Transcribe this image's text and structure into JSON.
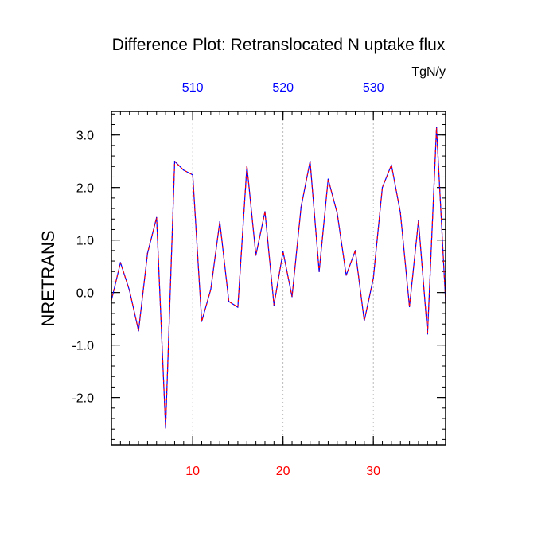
{
  "chart_data": {
    "type": "line",
    "title": "Difference Plot: Retranslocated N uptake flux",
    "units": "TgN/y",
    "ylabel": "NRETRANS",
    "xlim": [
      1,
      38
    ],
    "ylim": [
      -2.9,
      3.45
    ],
    "grid": "vertical dashed at major x ticks",
    "colors": {
      "series": "#0000ff",
      "series_dash": "#ff0000",
      "bottom_ticks": "#ff0000",
      "top_ticks": "#0000ff",
      "axis": "#000000",
      "grid": "#aaaaaa"
    },
    "x_bottom_ticks": [
      {
        "value": 10,
        "label": "10"
      },
      {
        "value": 20,
        "label": "20"
      },
      {
        "value": 30,
        "label": "30"
      }
    ],
    "x_top_ticks": [
      {
        "value": 10,
        "label": "510"
      },
      {
        "value": 20,
        "label": "520"
      },
      {
        "value": 30,
        "label": "530"
      }
    ],
    "y_ticks": [
      {
        "value": 3,
        "label": "3.0"
      },
      {
        "value": 2,
        "label": "2.0"
      },
      {
        "value": 1,
        "label": "1.0"
      },
      {
        "value": 0,
        "label": "0.0"
      },
      {
        "value": -1,
        "label": "-1.0"
      },
      {
        "value": -2,
        "label": "-2.0"
      }
    ],
    "series": [
      {
        "x": [
          1,
          2,
          3,
          4,
          5,
          6,
          7,
          8,
          9,
          10,
          11,
          12,
          13,
          14,
          15,
          16,
          17,
          18,
          19,
          20,
          21,
          22,
          23,
          24,
          25,
          26,
          27,
          28,
          29,
          30,
          31,
          32,
          33,
          34,
          35,
          36,
          37,
          38
        ],
        "values": [
          -0.15,
          0.57,
          0.04,
          -0.73,
          0.75,
          1.43,
          -2.58,
          2.5,
          2.33,
          2.24,
          -0.55,
          0.06,
          1.35,
          -0.17,
          -0.28,
          2.41,
          0.71,
          1.54,
          -0.24,
          0.78,
          -0.08,
          1.63,
          2.5,
          0.4,
          2.16,
          1.51,
          0.33,
          0.8,
          -0.54,
          0.27,
          2.0,
          2.43,
          1.52,
          -0.27,
          1.37,
          -0.79,
          3.14,
          -0.17
        ]
      }
    ]
  }
}
